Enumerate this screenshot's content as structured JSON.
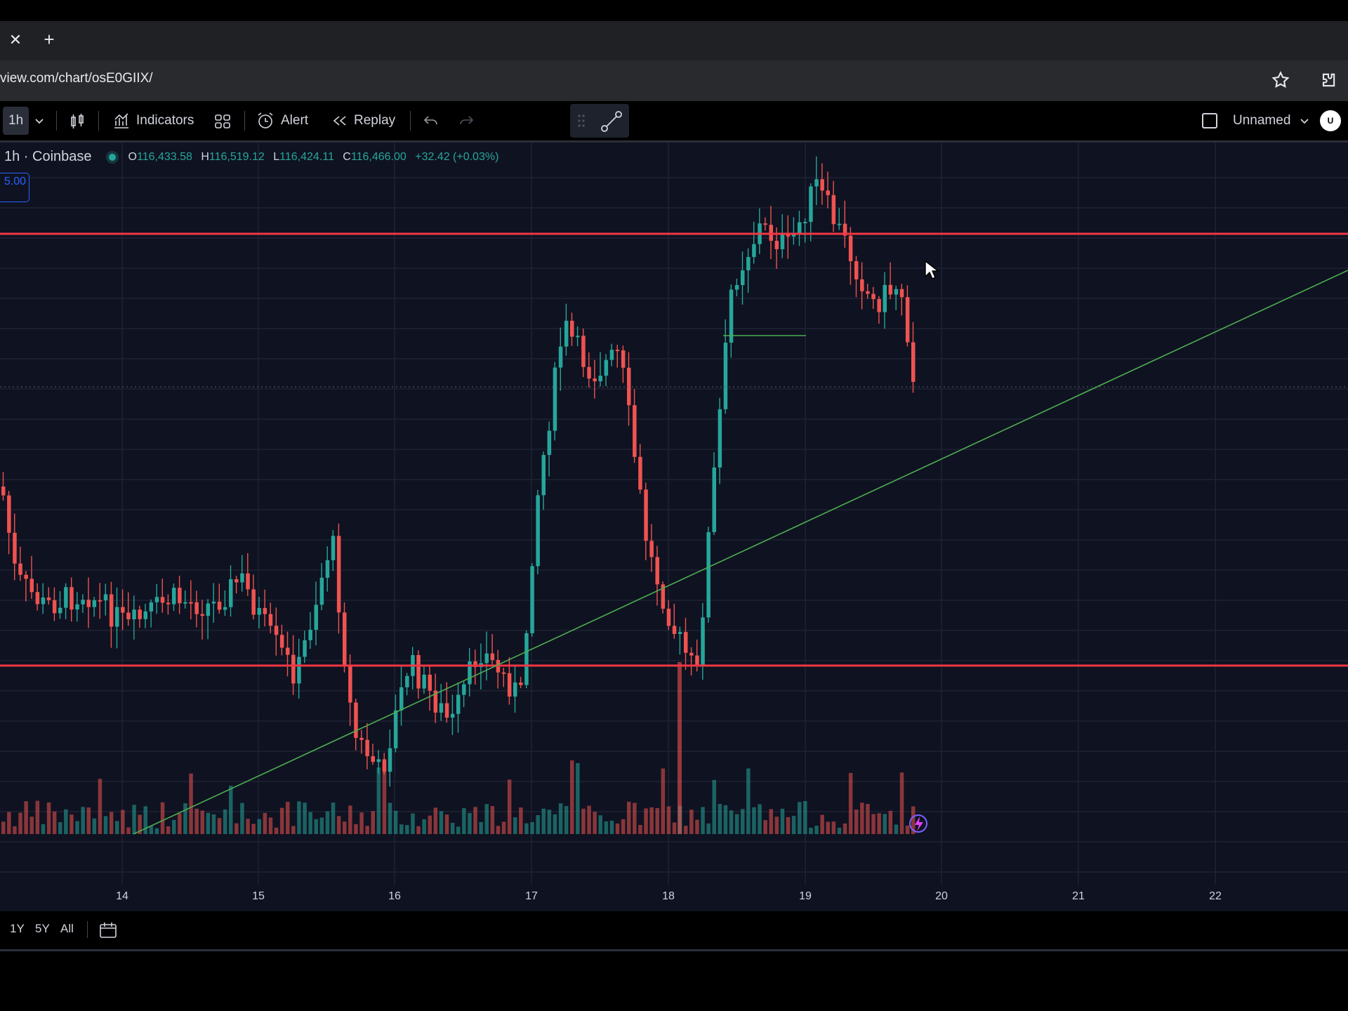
{
  "browser": {
    "tab_close": "✕",
    "tab_new": "+",
    "url": "view.com/chart/osE0GIIX/"
  },
  "toolbar": {
    "interval": "1h",
    "indicators": "Indicators",
    "alert": "Alert",
    "replay": "Replay",
    "layout_name": "Unnamed",
    "avatar_letter": "U"
  },
  "legend": {
    "symbol": "1h · Coinbase",
    "o_label": "O",
    "o_value": "116,433.58",
    "h_label": "H",
    "h_value": "116,519.12",
    "l_label": "L",
    "l_value": "116,424.11",
    "c_label": "C",
    "c_value": "116,466.00",
    "change": "+32.42 (+0.03%)"
  },
  "price_tag": "5.00",
  "bottom": {
    "range_1y": "1Y",
    "range_5y": "5Y",
    "range_all": "All"
  },
  "colors": {
    "up": "#26a69a",
    "down": "#ef5350",
    "hline": "#f23645",
    "trendline": "#4caf50",
    "background": "#0f1221"
  },
  "chart_data": {
    "type": "candlestick",
    "x_ticks": [
      "14",
      "15",
      "16",
      "17",
      "18",
      "19",
      "20",
      "21",
      "22"
    ],
    "horizontal_lines": [
      "resistance",
      "support"
    ],
    "trendline": "ascending",
    "volume": true,
    "grid": true
  }
}
